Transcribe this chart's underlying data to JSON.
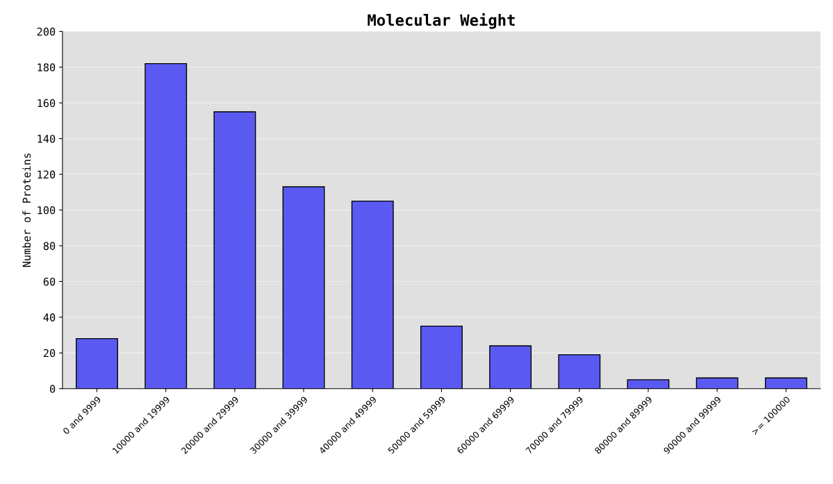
{
  "chart_data": {
    "type": "bar",
    "title": "Molecular Weight",
    "ylabel": "Number of Proteins",
    "categories": [
      "0 and 9999",
      "10000 and 19999",
      "20000 and 29999",
      "30000 and 39999",
      "40000 and 49999",
      "50000 and 59999",
      "60000 and 69999",
      "70000 and 79999",
      "80000 and 89999",
      "90000 and 99999",
      ">= 100000"
    ],
    "values": [
      28,
      182,
      155,
      113,
      105,
      35,
      24,
      19,
      5,
      6,
      6
    ],
    "color": "#5a5af2",
    "ylim": [
      0,
      200
    ],
    "yticks": [
      0,
      20,
      40,
      60,
      80,
      100,
      120,
      140,
      160,
      180,
      200
    ],
    "grid": "y"
  }
}
